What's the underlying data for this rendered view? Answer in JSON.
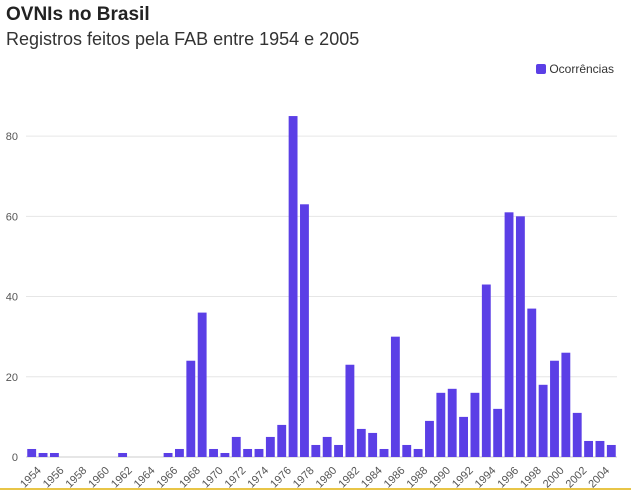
{
  "header": {
    "title": "OVNIs no Brasil",
    "subtitle": "Registros feitos pela FAB entre 1954 e 2005"
  },
  "legend": {
    "label": "Ocorrências",
    "color": "#5b3fe6",
    "placement": "top-right"
  },
  "colors": {
    "bar": "#5b3fe6",
    "grid": "#e6e6e6",
    "axis_text": "#555555",
    "bottom_rule": "#e8c547"
  },
  "chart_data": {
    "type": "bar",
    "title": "",
    "xlabel": "",
    "ylabel": "",
    "ylim": [
      0,
      90
    ],
    "yticks": [
      0,
      20,
      40,
      60,
      80
    ],
    "grid": true,
    "categories": [
      "1954",
      "1955",
      "1956",
      "1957",
      "1958",
      "1959",
      "1960",
      "1961",
      "1962",
      "1963",
      "1964",
      "1965",
      "1966",
      "1967",
      "1968",
      "1969",
      "1970",
      "1971",
      "1972",
      "1973",
      "1974",
      "1975",
      "1976",
      "1977",
      "1978",
      "1979",
      "1980",
      "1981",
      "1982",
      "1983",
      "1984",
      "1985",
      "1986",
      "1987",
      "1988",
      "1989",
      "1990",
      "1991",
      "1992",
      "1993",
      "1994",
      "1995",
      "1996",
      "1997",
      "1998",
      "1999",
      "2000",
      "2001",
      "2002",
      "2003",
      "2004",
      "2005"
    ],
    "xtick_labels": [
      "1954",
      "1956",
      "1958",
      "1960",
      "1962",
      "1964",
      "1966",
      "1968",
      "1970",
      "1972",
      "1974",
      "1976",
      "1978",
      "1980",
      "1982",
      "1984",
      "1986",
      "1988",
      "1990",
      "1992",
      "1994",
      "1996",
      "1998",
      "2000",
      "2002",
      "2004"
    ],
    "series": [
      {
        "name": "Ocorrências",
        "values": [
          2,
          1,
          1,
          0,
          0,
          0,
          0,
          0,
          1,
          0,
          0,
          0,
          1,
          2,
          24,
          36,
          2,
          1,
          5,
          2,
          2,
          5,
          8,
          85,
          63,
          3,
          5,
          3,
          23,
          7,
          6,
          2,
          30,
          3,
          2,
          9,
          16,
          17,
          10,
          16,
          43,
          12,
          61,
          60,
          37,
          18,
          24,
          26,
          11,
          4,
          4,
          3
        ]
      }
    ]
  }
}
